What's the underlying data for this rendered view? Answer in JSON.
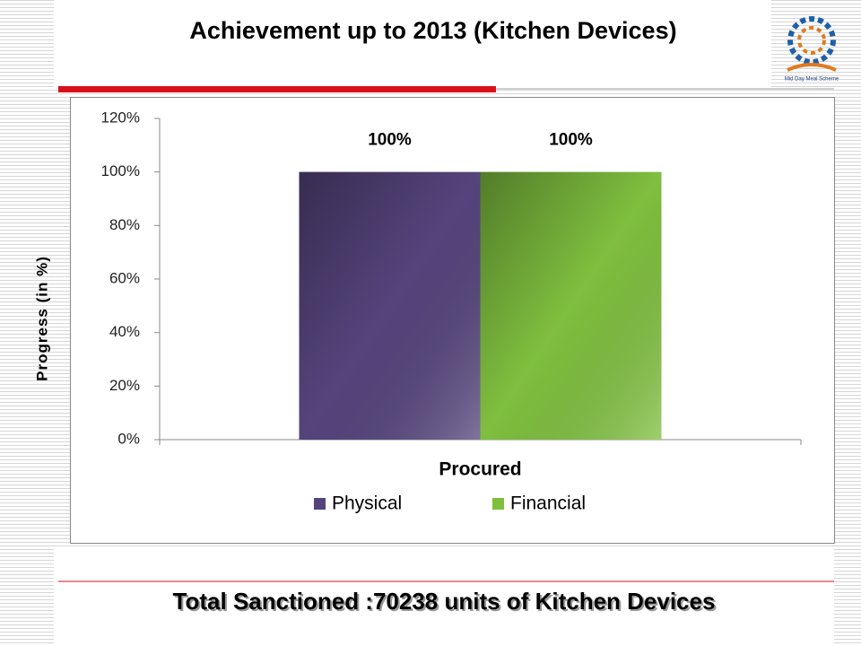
{
  "chart_data": {
    "type": "bar",
    "title": "Achievement up to 2013 (Kitchen Devices)",
    "y_label": "Progress (in %)",
    "categories": [
      "Procured"
    ],
    "series": [
      {
        "name": "Physical",
        "color": "#55447c",
        "values": [
          100
        ],
        "value_labels": [
          "100%"
        ]
      },
      {
        "name": "Financial",
        "color": "#7fbf3f",
        "values": [
          100
        ],
        "value_labels": [
          "100%"
        ]
      }
    ],
    "ylim": [
      0,
      120
    ],
    "yticks": [
      {
        "value": 0,
        "label": "0%"
      },
      {
        "value": 20,
        "label": "20%"
      },
      {
        "value": 40,
        "label": "40%"
      },
      {
        "value": 60,
        "label": "60%"
      },
      {
        "value": 80,
        "label": "80%"
      },
      {
        "value": 100,
        "label": "100%"
      },
      {
        "value": 120,
        "label": "120%"
      }
    ],
    "grid": false,
    "legend": "bottom",
    "footer": "Total Sanctioned :70238 units of Kitchen Devices",
    "logo_text": "Mid Day Meal Scheme"
  }
}
